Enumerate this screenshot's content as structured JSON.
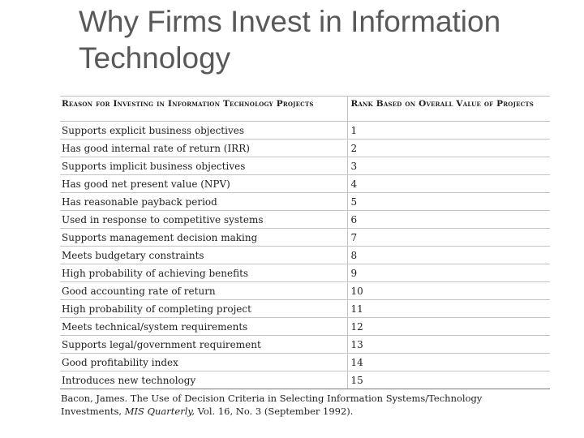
{
  "title": "Why Firms Invest in Information Technology",
  "table": {
    "headers": [
      "Reason for Investing in Information Technology Projects",
      "Rank Based on Overall Value of Projects"
    ],
    "rows": [
      {
        "reason": "Supports explicit business objectives",
        "rank": "1"
      },
      {
        "reason": "Has good internal rate of return (IRR)",
        "rank": "2"
      },
      {
        "reason": "Supports implicit business objectives",
        "rank": "3"
      },
      {
        "reason": "Has good net present value (NPV)",
        "rank": "4"
      },
      {
        "reason": "Has reasonable payback period",
        "rank": "5"
      },
      {
        "reason": "Used in response to competitive systems",
        "rank": "6"
      },
      {
        "reason": "Supports management decision making",
        "rank": "7"
      },
      {
        "reason": "Meets budgetary constraints",
        "rank": "8"
      },
      {
        "reason": "High probability of achieving benefits",
        "rank": "9"
      },
      {
        "reason": "Good accounting rate of return",
        "rank": "10"
      },
      {
        "reason": "High probability of completing project",
        "rank": "11"
      },
      {
        "reason": "Meets technical/system requirements",
        "rank": "12"
      },
      {
        "reason": "Supports legal/government requirement",
        "rank": "13"
      },
      {
        "reason": "Good profitability index",
        "rank": "14"
      },
      {
        "reason": "Introduces new technology",
        "rank": "15"
      }
    ]
  },
  "citation": {
    "line1": "Bacon, James. The Use of Decision Criteria in Selecting Information Systems/Technology",
    "prefix": "Investments,",
    "journal": "MIS Quarterly,",
    "suffix": "Vol. 16, No. 3 (September 1992)."
  }
}
